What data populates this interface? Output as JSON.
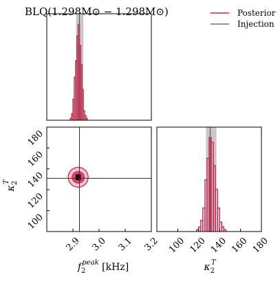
{
  "chart_data": {
    "type": "corner",
    "title": "BLQ(1.298M⊙ − 1.298M⊙)",
    "legend": {
      "placement": "top-right",
      "entries": [
        {
          "label": "Posterior",
          "color": "#d6204a"
        },
        {
          "label": "Injection",
          "color": "#555555"
        }
      ]
    },
    "parameters": [
      {
        "name": "f2_peak",
        "label_main": "f",
        "label_sub": "2",
        "label_sup": "peak",
        "label_unit": " [kHz]",
        "range": [
          2.8,
          3.2
        ],
        "ticks": [
          2.9,
          3.0,
          3.1,
          3.2
        ],
        "tick_labels": [
          "2.9",
          "3.0",
          "3.1",
          "3.2"
        ]
      },
      {
        "name": "kappa2_T",
        "label_main": "κ",
        "label_sub": "2",
        "label_sup": "T",
        "label_unit": "",
        "range": [
          80,
          180
        ],
        "ticks": [
          100,
          120,
          140,
          160,
          180
        ],
        "tick_labels": [
          "100",
          "120",
          "140",
          "160",
          "180"
        ]
      }
    ],
    "injection": {
      "f2_peak": 2.925,
      "kappa2_T": 131
    },
    "credible_band": {
      "f2_peak": [
        2.912,
        2.94
      ],
      "kappa2_T": [
        127,
        137
      ]
    },
    "marginal_f2_peak": {
      "edges": [
        2.89,
        2.895,
        2.9,
        2.905,
        2.91,
        2.915,
        2.92,
        2.925,
        2.93,
        2.935,
        2.94,
        2.945,
        2.95,
        2.955
      ],
      "counts": [
        0.02,
        0.07,
        0.22,
        0.45,
        0.62,
        0.88,
        1.0,
        0.78,
        0.58,
        0.32,
        0.1,
        0.05,
        0.02
      ]
    },
    "marginal_kappa2_T": {
      "edges": [
        118,
        120,
        122,
        124,
        126,
        128,
        130,
        132,
        134,
        136,
        138,
        140,
        142,
        144,
        146
      ],
      "counts": [
        0.02,
        0.05,
        0.12,
        0.25,
        0.55,
        0.78,
        1.0,
        0.95,
        0.7,
        0.45,
        0.25,
        0.1,
        0.05,
        0.02
      ]
    },
    "joint": {
      "center": {
        "f2_peak": 2.92,
        "kappa2_T": 132
      },
      "contours": [
        {
          "level": "outer",
          "half_width": {
            "f2_peak": 0.038,
            "kappa2_T": 9.5
          }
        },
        {
          "level": "inner",
          "half_width": {
            "f2_peak": 0.023,
            "kappa2_T": 5.5
          }
        },
        {
          "level": "core",
          "half_width": {
            "f2_peak": 0.01,
            "kappa2_T": 2.8
          }
        }
      ]
    }
  }
}
